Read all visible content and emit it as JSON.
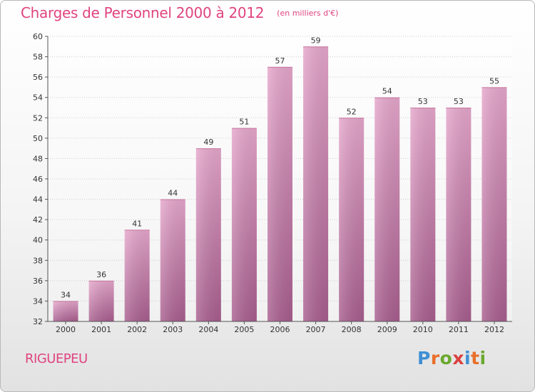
{
  "header": {
    "title": "Charges de Personnel 2000 à 2012",
    "subtitle": "(en milliers d'€)"
  },
  "footer": {
    "commune": "RIGUEPEU",
    "logo": "Proxiti"
  },
  "colors": {
    "accent": "#e0447f",
    "bar_top": "#e6a7cc",
    "bar_bottom": "#a85e8e",
    "logo_letters": [
      "#3f8fd4",
      "#e8702a",
      "#6aa82e",
      "#d94040",
      "#3f8fd4",
      "#e8702a",
      "#6aa82e"
    ]
  },
  "chart_data": {
    "type": "bar",
    "categories": [
      "2000",
      "2001",
      "2002",
      "2003",
      "2004",
      "2005",
      "2006",
      "2007",
      "2008",
      "2009",
      "2010",
      "2011",
      "2012"
    ],
    "values": [
      34,
      36,
      41,
      44,
      49,
      51,
      57,
      59,
      52,
      54,
      53,
      53,
      55
    ],
    "data_labels": [
      "34",
      "36",
      "41",
      "44",
      "49",
      "51",
      "57",
      "59",
      "52",
      "54",
      "53",
      "53",
      "55"
    ],
    "ylim": [
      32,
      60
    ],
    "yticks": [
      "32",
      "34",
      "36",
      "38",
      "40",
      "42",
      "44",
      "46",
      "48",
      "50",
      "52",
      "54",
      "56",
      "58",
      "60"
    ],
    "grid": true,
    "xlabel": "",
    "ylabel": ""
  }
}
